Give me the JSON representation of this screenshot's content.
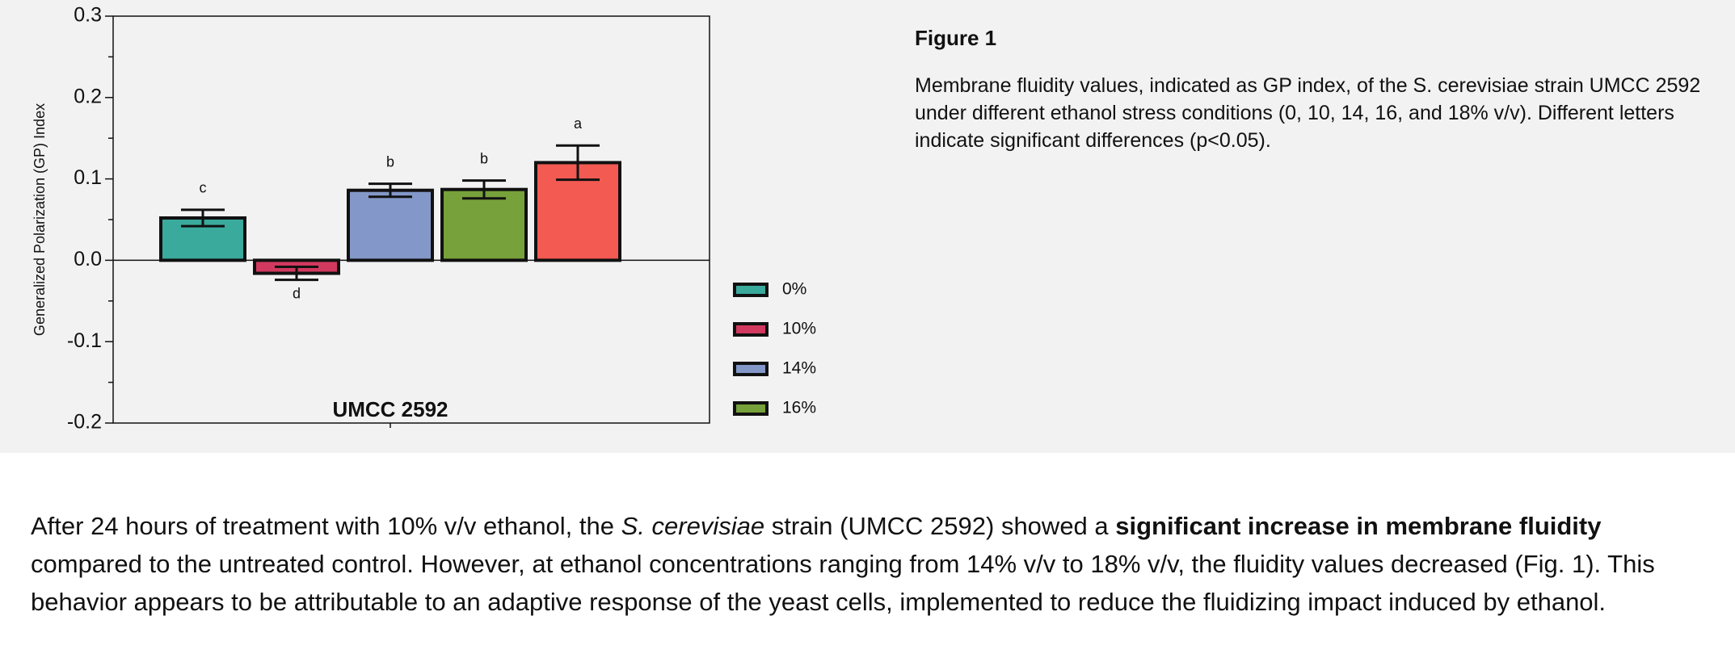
{
  "chart_data": {
    "type": "bar",
    "ylabel": "Generalized Polarization (GP) Index",
    "categories": [
      "UMCC 2592"
    ],
    "series": [
      {
        "name": "0%",
        "color": "#3aaa9c",
        "values": [
          0.052
        ],
        "errors": [
          0.01
        ],
        "annotation": "c"
      },
      {
        "name": "10%",
        "color": "#d1395f",
        "values": [
          -0.016
        ],
        "errors": [
          0.008
        ],
        "annotation": "d"
      },
      {
        "name": "14%",
        "color": "#8398c8",
        "values": [
          0.086
        ],
        "errors": [
          0.008
        ],
        "annotation": "b"
      },
      {
        "name": "16%",
        "color": "#77a13a",
        "values": [
          0.087
        ],
        "errors": [
          0.011
        ],
        "annotation": "b"
      },
      {
        "color": "#f25a52",
        "values": [
          0.12
        ],
        "errors": [
          0.021
        ],
        "annotation": "a"
      }
    ],
    "ylim": [
      -0.2,
      0.3
    ],
    "yticks": [
      -0.2,
      -0.1,
      {
        "value": 0,
        "label": "0.0"
      },
      0.1,
      0.2,
      0.3
    ],
    "minor_yticks": [
      -0.15,
      -0.05,
      0.05,
      0.15,
      0.25
    ],
    "legend": "right"
  },
  "figure": {
    "title": "Figure 1",
    "caption": "Membrane fluidity values, indicated as GP index, of the S. cerevisiae strain UMCC 2592 under different ethanol stress conditions (0, 10, 14, 16, and 18% v/v). Different letters indicate significant differences (p<0.05)."
  },
  "paragraph": {
    "parts": [
      "After 24 hours of treatment with 10% v/v ethanol, the ",
      "S. cerevisiae",
      " strain (UMCC 2592) showed a ",
      "significant increase in membrane fluidity",
      " compared to the untreated control. However, at ethanol concentrations ranging from 14% v/v to 18% v/v, the fluidity values decreased (Fig. 1). This behavior appears to be attributable to an adaptive response of the yeast cells, implemented to reduce the fluidizing impact induced by ethanol."
    ]
  }
}
